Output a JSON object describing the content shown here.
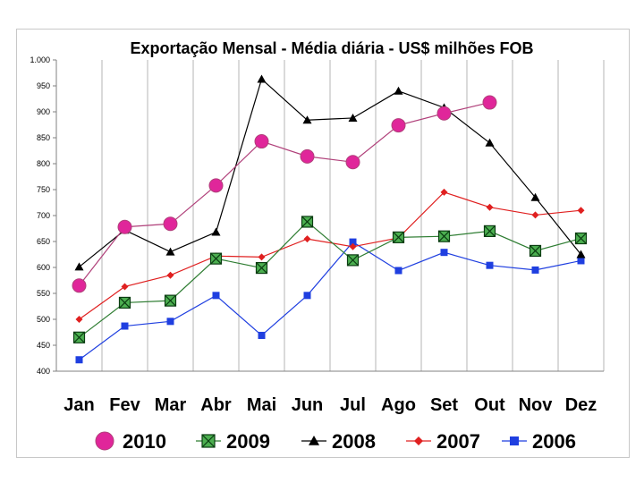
{
  "chart_data": {
    "type": "line",
    "title": "Exportação Mensal - Média diária - US$ milhões FOB",
    "xlabel": "",
    "ylabel": "",
    "categories": [
      "Jan",
      "Fev",
      "Mar",
      "Abr",
      "Mai",
      "Jun",
      "Jul",
      "Ago",
      "Set",
      "Out",
      "Nov",
      "Dez"
    ],
    "ylim": [
      400,
      1000
    ],
    "yticks": [
      400,
      450,
      500,
      550,
      600,
      650,
      700,
      750,
      800,
      850,
      900,
      950,
      1000
    ],
    "ytick_labels": [
      "400",
      "450",
      "500",
      "550",
      "600",
      "650",
      "700",
      "750",
      "800",
      "850",
      "900",
      "950",
      "1.000"
    ],
    "grid": "vertical",
    "legend_position": "bottom",
    "series": [
      {
        "name": "2010",
        "color": "#e0269a",
        "line_color": "#b0407a",
        "marker": "circle",
        "values": [
          565,
          678,
          684,
          758,
          843,
          814,
          803,
          874,
          897,
          918,
          null,
          null
        ]
      },
      {
        "name": "2009",
        "color": "#2e8b3a",
        "line_color": "#2e7d32",
        "marker": "square-x",
        "values": [
          465,
          532,
          536,
          617,
          599,
          688,
          614,
          658,
          660,
          670,
          632,
          656
        ]
      },
      {
        "name": "2008",
        "color": "#000000",
        "line_color": "#000000",
        "marker": "triangle",
        "values": [
          601,
          672,
          630,
          668,
          963,
          884,
          888,
          940,
          908,
          840,
          735,
          625
        ]
      },
      {
        "name": "2007",
        "color": "#e02020",
        "line_color": "#e02020",
        "marker": "diamond",
        "values": [
          500,
          563,
          585,
          622,
          620,
          655,
          640,
          657,
          745,
          716,
          701,
          710
        ]
      },
      {
        "name": "2006",
        "color": "#1f3fe0",
        "line_color": "#1f3fe0",
        "marker": "square",
        "values": [
          422,
          487,
          496,
          546,
          469,
          546,
          649,
          594,
          629,
          604,
          595,
          613
        ]
      }
    ]
  }
}
